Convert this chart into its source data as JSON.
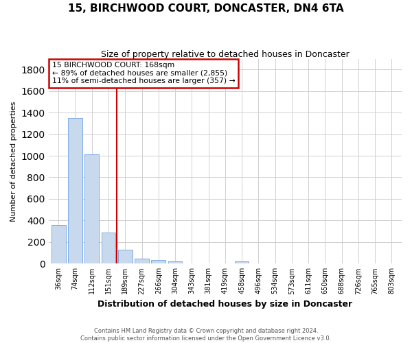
{
  "title": "15, BIRCHWOOD COURT, DONCASTER, DN4 6TA",
  "subtitle": "Size of property relative to detached houses in Doncaster",
  "xlabel": "Distribution of detached houses by size in Doncaster",
  "ylabel": "Number of detached properties",
  "bar_labels": [
    "36sqm",
    "74sqm",
    "112sqm",
    "151sqm",
    "189sqm",
    "227sqm",
    "266sqm",
    "304sqm",
    "343sqm",
    "381sqm",
    "419sqm",
    "458sqm",
    "496sqm",
    "534sqm",
    "573sqm",
    "611sqm",
    "650sqm",
    "688sqm",
    "726sqm",
    "765sqm",
    "803sqm"
  ],
  "bar_values": [
    355,
    1350,
    1010,
    290,
    130,
    45,
    35,
    18,
    0,
    0,
    0,
    20,
    0,
    0,
    0,
    0,
    0,
    0,
    0,
    0,
    0
  ],
  "bar_color": "#c8d9ee",
  "bar_edge_color": "#7aabe6",
  "property_line_x": 3.5,
  "annotation_text_line1": "15 BIRCHWOOD COURT: 168sqm",
  "annotation_text_line2": "← 89% of detached houses are smaller (2,855)",
  "annotation_text_line3": "11% of semi-detached houses are larger (357) →",
  "annotation_box_color": "#ffffff",
  "annotation_border_color": "#cc0000",
  "vline_color": "#cc0000",
  "ylim": [
    0,
    1900
  ],
  "yticks": [
    0,
    200,
    400,
    600,
    800,
    1000,
    1200,
    1400,
    1600,
    1800
  ],
  "footer_line1": "Contains HM Land Registry data © Crown copyright and database right 2024.",
  "footer_line2": "Contains public sector information licensed under the Open Government Licence v3.0.",
  "background_color": "#ffffff",
  "grid_color": "#d0d0d0"
}
